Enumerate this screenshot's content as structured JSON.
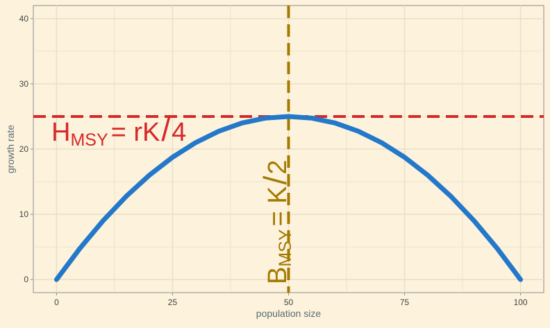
{
  "chart_data": {
    "type": "line",
    "title": "",
    "xlabel": "population size",
    "ylabel": "growth rate",
    "xlim": [
      -5,
      105
    ],
    "ylim": [
      -2,
      42
    ],
    "x_ticks": [
      0,
      25,
      50,
      75,
      100
    ],
    "y_ticks": [
      0,
      10,
      20,
      30,
      40
    ],
    "grid": true,
    "series": [
      {
        "color": "#2478c9",
        "x": [
          0,
          5,
          10,
          15,
          20,
          25,
          30,
          35,
          40,
          45,
          50,
          55,
          60,
          65,
          70,
          75,
          80,
          85,
          90,
          95,
          100
        ],
        "y": [
          0,
          4.75,
          9,
          12.75,
          16,
          18.75,
          21,
          22.75,
          24,
          24.75,
          25,
          24.75,
          24,
          22.75,
          21,
          18.75,
          16,
          12.75,
          9,
          4.75,
          0
        ]
      }
    ],
    "reference_lines": [
      {
        "orientation": "horizontal",
        "value": 25,
        "color": "#d62828",
        "style": "dashed"
      },
      {
        "orientation": "vertical",
        "value": 50,
        "color": "#a37a00",
        "style": "dashed"
      }
    ],
    "annotations": [
      {
        "main": "H",
        "sub": "MSY",
        "rest": "= rK",
        "slash": "/",
        "end": "4",
        "color": "#d62828"
      },
      {
        "main": "B",
        "sub": "MSY",
        "rest": "= K",
        "slash": "/",
        "end": "2",
        "color": "#a37a00"
      }
    ]
  }
}
